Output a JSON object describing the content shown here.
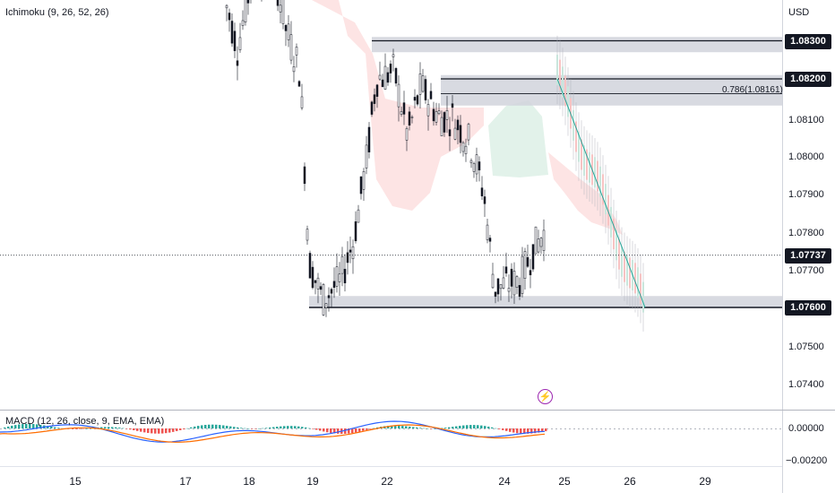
{
  "chart_data": {
    "type": "candlestick",
    "instrument_currency": "USD",
    "indicator_label": "Ichimoku (9, 26, 52, 26)",
    "macd_label": "MACD (12, 26, close, 9, EMA, EMA)",
    "price_ticks": [
      "1.08100",
      "1.08000",
      "1.07900",
      "1.07800",
      "1.07700",
      "1.07500",
      "1.07400"
    ],
    "price_tags": [
      {
        "value": "1.08300",
        "price": 1.083
      },
      {
        "value": "1.08200",
        "price": 1.082
      },
      {
        "value": "1.07737",
        "price": 1.07737
      },
      {
        "value": "1.07600",
        "price": 1.076
      }
    ],
    "macd_ticks": [
      "0.00000",
      "−0.00200"
    ],
    "date_ticks": [
      "15",
      "17",
      "18",
      "19",
      "22",
      "24",
      "25",
      "26",
      "29"
    ],
    "fib_label": "0.786(1.08161)",
    "ylim": [
      1.0733,
      1.0848
    ],
    "supply_zones": [
      [
        1.0827,
        1.0831
      ],
      [
        1.0813,
        1.0821
      ]
    ],
    "demand_zone": [
      1.076,
      1.0763
    ],
    "current_price": 1.07737,
    "projection_line": {
      "from": 1.082,
      "to": 1.076
    },
    "colors": {
      "up": "#26a69a",
      "down": "#ef5350",
      "candle": "#131722",
      "zone": "#d1d4dc",
      "macd": "#2962ff",
      "signal": "#ff6d00",
      "accent": "#9c27b0"
    }
  }
}
